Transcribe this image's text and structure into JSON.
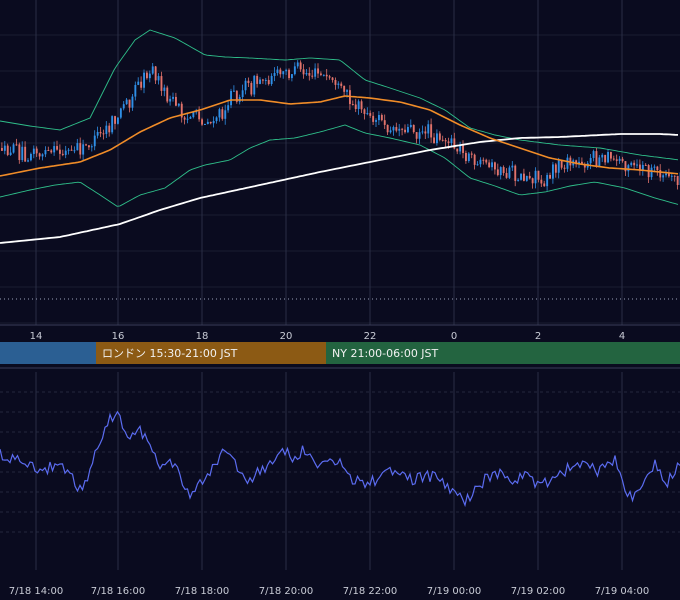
{
  "chart_data": [
    {
      "type": "candlestick",
      "x_ticks": [
        "14",
        "16",
        "18",
        "20",
        "22",
        "0",
        "2",
        "4"
      ],
      "colors": {
        "background": "#0a0b1f",
        "up_candle": "#2f8fe6",
        "down_candle": "#e2736b",
        "bollinger": "#2fbf8a",
        "moving_average_short": "#f08c28",
        "moving_average_long": "#ffffff",
        "grid": "#2a2e45"
      }
    },
    {
      "type": "band",
      "sessions": [
        {
          "label": "",
          "color": "#2b5f93"
        },
        {
          "label": "ロンドン 15:30-21:00 JST",
          "color": "#8c5a14"
        },
        {
          "label": "NY 21:00-06:00 JST",
          "color": "#236440"
        }
      ]
    },
    {
      "type": "line",
      "line_color": "#5b6cf0",
      "x_ticks": [
        "7/18 14:00",
        "7/18 16:00",
        "7/18 18:00",
        "7/18 20:00",
        "7/18 22:00",
        "7/19 00:00",
        "7/19 02:00",
        "7/19 04:00"
      ]
    }
  ]
}
